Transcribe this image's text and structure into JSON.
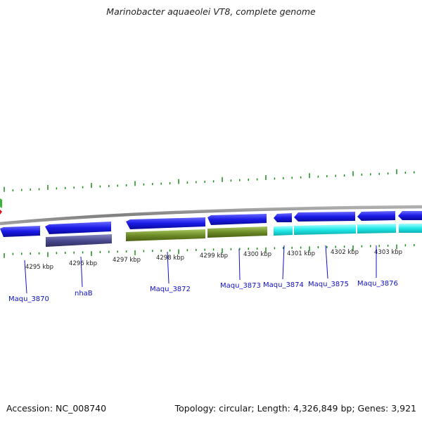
{
  "title": "Marinobacter aquaeolei VT8, complete genome",
  "footer": {
    "accession": "Accession: NC_008740",
    "topology": "Topology: circular; Length: 4,326,849 bp; Genes: 3,921"
  },
  "colors": {
    "backbone": "#8c8c8c",
    "gene_blue": "#1a1ae6",
    "gene_cyan": "#1ee6e6",
    "gene_olive": "#6e8c28",
    "gene_slate": "#4a4a90",
    "tick_green": "#1a8c1a",
    "label_blue": "#1010c8"
  },
  "scale": {
    "ticks": [
      "4295 kbp",
      "4296 kbp",
      "4297 kbp",
      "4298 kbp",
      "4299 kbp",
      "4300 kbp",
      "4301 kbp",
      "4302 kbp",
      "4303 kbp"
    ]
  },
  "genes": [
    {
      "name": "Maqu_3870",
      "color": "blue"
    },
    {
      "name": "nhaB",
      "color": "slate"
    },
    {
      "name": "Maqu_3872",
      "color": "olive"
    },
    {
      "name": "Maqu_3873",
      "color": "olive"
    },
    {
      "name": "Maqu_3874",
      "color": "cyan"
    },
    {
      "name": "Maqu_3875",
      "color": "cyan"
    },
    {
      "name": "Maqu_3876",
      "color": "cyan"
    }
  ]
}
